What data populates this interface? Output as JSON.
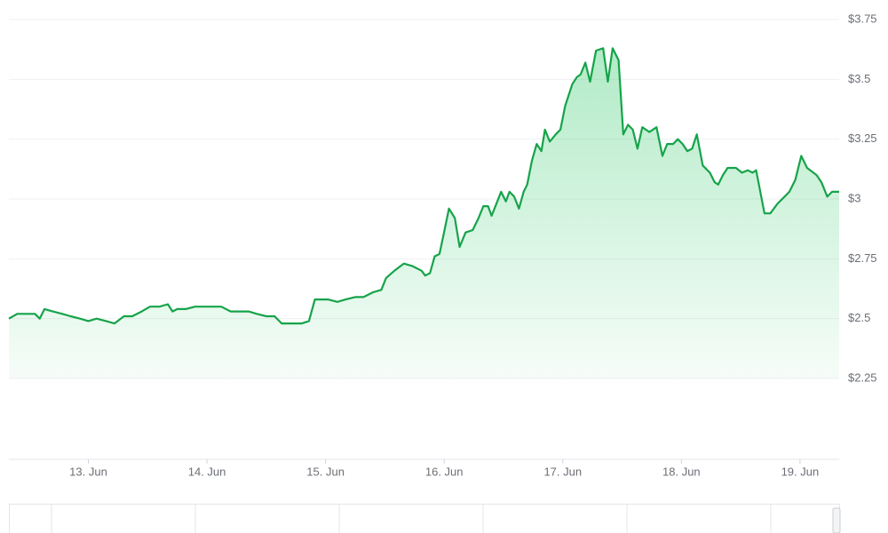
{
  "chart_data": {
    "type": "area",
    "x": [
      12.33,
      12.4,
      12.48,
      12.55,
      12.59,
      12.63,
      12.7,
      12.78,
      12.85,
      12.93,
      13.0,
      13.07,
      13.15,
      13.22,
      13.3,
      13.37,
      13.45,
      13.52,
      13.6,
      13.67,
      13.71,
      13.75,
      13.82,
      13.9,
      13.97,
      14.05,
      14.12,
      14.2,
      14.27,
      14.35,
      14.42,
      14.5,
      14.57,
      14.63,
      14.72,
      14.8,
      14.86,
      14.91,
      15.02,
      15.1,
      15.17,
      15.25,
      15.32,
      15.4,
      15.47,
      15.51,
      15.58,
      15.66,
      15.73,
      15.81,
      15.84,
      15.88,
      15.92,
      15.96,
      15.99,
      16.04,
      16.09,
      16.13,
      16.18,
      16.24,
      16.29,
      16.33,
      16.37,
      16.4,
      16.44,
      16.48,
      16.52,
      16.55,
      16.59,
      16.63,
      16.67,
      16.7,
      16.74,
      16.78,
      16.82,
      16.85,
      16.89,
      16.94,
      16.98,
      17.02,
      17.08,
      17.12,
      17.15,
      17.19,
      17.23,
      17.28,
      17.34,
      17.38,
      17.42,
      17.47,
      17.51,
      17.55,
      17.59,
      17.63,
      17.67,
      17.73,
      17.79,
      17.84,
      17.88,
      17.93,
      17.97,
      18.01,
      18.05,
      18.09,
      18.13,
      18.18,
      18.24,
      18.28,
      18.31,
      18.35,
      18.39,
      18.46,
      18.51,
      18.56,
      18.6,
      18.63,
      18.7,
      18.75,
      18.81,
      18.87,
      18.91,
      18.96,
      19.01,
      19.06,
      19.14,
      19.18,
      19.23,
      19.27,
      19.33
    ],
    "series": [
      {
        "color": "#16a34a",
        "values": [
          2.5,
          2.52,
          2.52,
          2.52,
          2.5,
          2.54,
          2.53,
          2.52,
          2.51,
          2.5,
          2.49,
          2.5,
          2.49,
          2.48,
          2.51,
          2.51,
          2.53,
          2.55,
          2.55,
          2.56,
          2.53,
          2.54,
          2.54,
          2.55,
          2.55,
          2.55,
          2.55,
          2.53,
          2.53,
          2.53,
          2.52,
          2.51,
          2.51,
          2.48,
          2.48,
          2.48,
          2.49,
          2.58,
          2.58,
          2.57,
          2.58,
          2.59,
          2.59,
          2.61,
          2.62,
          2.67,
          2.7,
          2.73,
          2.72,
          2.7,
          2.68,
          2.69,
          2.76,
          2.77,
          2.84,
          2.96,
          2.92,
          2.8,
          2.86,
          2.87,
          2.92,
          2.97,
          2.97,
          2.93,
          2.98,
          3.03,
          2.99,
          3.03,
          3.01,
          2.96,
          3.03,
          3.06,
          3.16,
          3.23,
          3.2,
          3.29,
          3.24,
          3.27,
          3.29,
          3.39,
          3.48,
          3.51,
          3.52,
          3.57,
          3.49,
          3.62,
          3.63,
          3.49,
          3.63,
          3.58,
          3.27,
          3.31,
          3.29,
          3.21,
          3.3,
          3.28,
          3.3,
          3.18,
          3.23,
          3.23,
          3.25,
          3.23,
          3.2,
          3.21,
          3.27,
          3.14,
          3.11,
          3.07,
          3.06,
          3.1,
          3.13,
          3.13,
          3.11,
          3.12,
          3.11,
          3.12,
          2.94,
          2.94,
          2.98,
          3.01,
          3.03,
          3.08,
          3.18,
          3.13,
          3.1,
          3.07,
          3.01,
          3.03,
          3.03
        ]
      }
    ],
    "xlim": [
      12.33,
      19.33
    ],
    "xticks": [
      {
        "value": 13,
        "label": "13. Jun"
      },
      {
        "value": 14,
        "label": "14. Jun"
      },
      {
        "value": 15,
        "label": "15. Jun"
      },
      {
        "value": 16,
        "label": "16. Jun"
      },
      {
        "value": 17,
        "label": "17. Jun"
      },
      {
        "value": 18,
        "label": "18. Jun"
      },
      {
        "value": 19,
        "label": "19. Jun"
      }
    ],
    "ylim": [
      2.25,
      3.75
    ],
    "yticks": [
      {
        "value": 2.25,
        "label": "$2.25"
      },
      {
        "value": 2.5,
        "label": "$2.5"
      },
      {
        "value": 2.75,
        "label": "$2.75"
      },
      {
        "value": 3,
        "label": "$3"
      },
      {
        "value": 3.25,
        "label": "$3.25"
      },
      {
        "value": 3.5,
        "label": "$3.5"
      },
      {
        "value": 3.75,
        "label": "$3.75"
      }
    ],
    "grid": true
  }
}
